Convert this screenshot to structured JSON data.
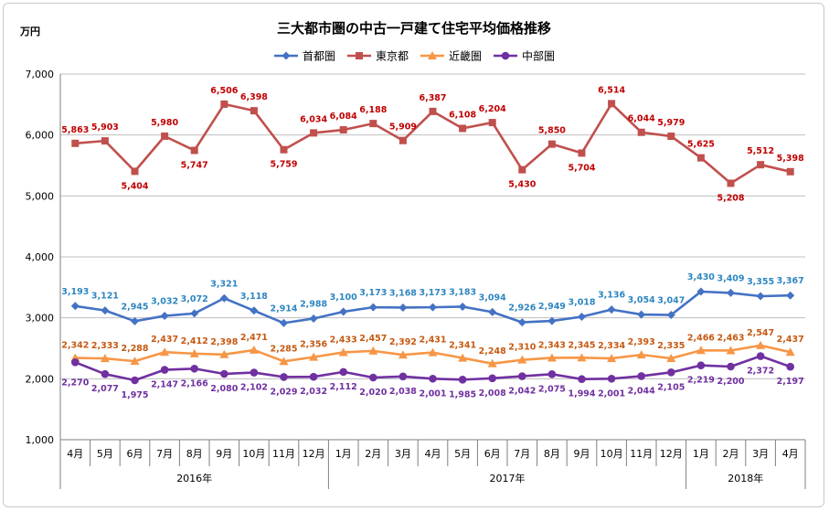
{
  "chart_data": {
    "type": "line",
    "title": "三大都市圏の中古一戸建て住宅平均価格推移",
    "unit_label": "万円",
    "ylim": [
      1000,
      7000
    ],
    "yticks": [
      "1,000",
      "2,000",
      "3,000",
      "4,000",
      "5,000",
      "6,000",
      "7,000"
    ],
    "ytick_values": [
      1000,
      2000,
      3000,
      4000,
      5000,
      6000,
      7000
    ],
    "grid": true,
    "legend_position": "top-center",
    "categories": [
      "4月",
      "5月",
      "6月",
      "7月",
      "8月",
      "9月",
      "10月",
      "11月",
      "12月",
      "1月",
      "2月",
      "3月",
      "4月",
      "5月",
      "6月",
      "7月",
      "8月",
      "9月",
      "10月",
      "11月",
      "12月",
      "1月",
      "2月",
      "3月",
      "4月"
    ],
    "years": [
      {
        "label": "2016年",
        "start": 0,
        "end": 8
      },
      {
        "label": "2017年",
        "start": 9,
        "end": 20
      },
      {
        "label": "2018年",
        "start": 21,
        "end": 24
      }
    ],
    "series": [
      {
        "name": "首都圏",
        "color": "#4472c4",
        "label_color": "#2e86c1",
        "marker": "diamond",
        "values": [
          3193,
          3121,
          2945,
          3032,
          3072,
          3321,
          3118,
          2914,
          2988,
          3100,
          3173,
          3168,
          3173,
          3183,
          3094,
          2926,
          2949,
          3018,
          3136,
          3054,
          3047,
          3430,
          3409,
          3355,
          3367
        ],
        "labels": [
          "3,193",
          "3,121",
          "2,945",
          "3,032",
          "3,072",
          "3,321",
          "3,118",
          "2,914",
          "2,988",
          "3,100",
          "3,173",
          "3,168",
          "3,173",
          "3,183",
          "3,094",
          "2,926",
          "2,949",
          "3,018",
          "3,136",
          "3,054",
          "3,047",
          "3,430",
          "3,409",
          "3,355",
          "3,367"
        ]
      },
      {
        "name": "東京都",
        "color": "#c0504d",
        "label_color": "#c00000",
        "marker": "square",
        "values": [
          5863,
          5903,
          5404,
          5980,
          5747,
          6506,
          6398,
          5759,
          6034,
          6084,
          6188,
          5909,
          6387,
          6108,
          6204,
          5430,
          5850,
          5704,
          6514,
          6044,
          5979,
          5625,
          5208,
          5512,
          5398
        ],
        "labels": [
          "5,863",
          "5,903",
          "5,404",
          "5,980",
          "5,747",
          "6,506",
          "6,398",
          "5,759",
          "6,034",
          "6,084",
          "6,188",
          "5,909",
          "6,387",
          "6,108",
          "6,204",
          "5,430",
          "5,850",
          "5,704",
          "6,514",
          "6,044",
          "5,979",
          "5,625",
          "5,208",
          "5,512",
          "5,398"
        ]
      },
      {
        "name": "近畿圏",
        "color": "#f79646",
        "label_color": "#c65911",
        "marker": "triangle",
        "values": [
          2342,
          2333,
          2288,
          2437,
          2412,
          2398,
          2471,
          2285,
          2356,
          2433,
          2457,
          2392,
          2431,
          2341,
          2248,
          2310,
          2343,
          2345,
          2334,
          2393,
          2335,
          2466,
          2463,
          2547,
          2437
        ],
        "labels": [
          "2,342",
          "2,333",
          "2,288",
          "2,437",
          "2,412",
          "2,398",
          "2,471",
          "2,285",
          "2,356",
          "2,433",
          "2,457",
          "2,392",
          "2,431",
          "2,341",
          "2,248",
          "2,310",
          "2,343",
          "2,345",
          "2,334",
          "2,393",
          "2,335",
          "2,466",
          "2,463",
          "2,547",
          "2,437"
        ]
      },
      {
        "name": "中部圏",
        "color": "#7030a0",
        "label_color": "#7030a0",
        "marker": "circle",
        "values": [
          2270,
          2077,
          1975,
          2147,
          2166,
          2080,
          2102,
          2029,
          2032,
          2112,
          2020,
          2038,
          2001,
          1985,
          2008,
          2042,
          2075,
          1994,
          2001,
          2044,
          2105,
          2219,
          2200,
          2372,
          2197
        ],
        "labels": [
          "2,270",
          "2,077",
          "1,975",
          "2,147",
          "2,166",
          "2,080",
          "2,102",
          "2,029",
          "2,032",
          "2,112",
          "2,020",
          "2,038",
          "2,001",
          "1,985",
          "2,008",
          "2,042",
          "2,075",
          "1,994",
          "2,001",
          "2,044",
          "2,105",
          "2,219",
          "2,200",
          "2,372",
          "2,197"
        ]
      }
    ]
  }
}
